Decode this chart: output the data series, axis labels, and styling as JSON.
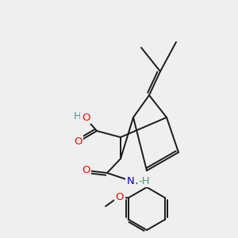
{
  "bg_color": "#efefef",
  "bond_color": "#1a1a1a",
  "atom_colors": {
    "O": "#ff0000",
    "N": "#0000cc",
    "H_teal": "#4a9a8a",
    "C": "#1a1a1a"
  },
  "figsize": [
    3.0,
    3.0
  ],
  "dpi": 100,
  "bond_lw": 1.4
}
